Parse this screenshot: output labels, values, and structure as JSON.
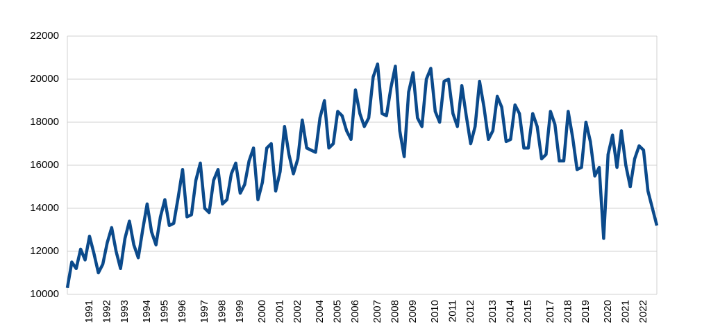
{
  "chart_data": {
    "type": "line",
    "categories": [
      null,
      null,
      null,
      null,
      null,
      "1991",
      null,
      null,
      null,
      "1992",
      null,
      null,
      null,
      "1993",
      null,
      null,
      null,
      null,
      "1994",
      null,
      null,
      null,
      "1995",
      null,
      null,
      null,
      "1996",
      null,
      null,
      null,
      null,
      "1997",
      null,
      null,
      null,
      "1998",
      null,
      null,
      null,
      "1999",
      null,
      null,
      null,
      null,
      "2000",
      null,
      null,
      null,
      "2001",
      null,
      null,
      null,
      "2002",
      null,
      null,
      null,
      null,
      "2004",
      null,
      null,
      null,
      "2005",
      null,
      null,
      null,
      "2006",
      null,
      null,
      null,
      null,
      "2007",
      null,
      null,
      null,
      "2008",
      null,
      null,
      null,
      "2009",
      null,
      null,
      null,
      null,
      "2010",
      null,
      null,
      null,
      "2011",
      null,
      null,
      null,
      "2012",
      null,
      null,
      null,
      null,
      "2013",
      null,
      null,
      null,
      "2014",
      null,
      null,
      null,
      "2015",
      null,
      null,
      null,
      null,
      "2017",
      null,
      null,
      null,
      "2018",
      null,
      null,
      null,
      "2019",
      null,
      null,
      null,
      null,
      "2020",
      null,
      null,
      null,
      "2021",
      null,
      null,
      null,
      "2022",
      null,
      null,
      null
    ],
    "series": [
      {
        "color": "#0b4a8b",
        "values": [
          10300,
          11500,
          11200,
          12100,
          11600,
          12700,
          11900,
          11000,
          11400,
          12400,
          13100,
          12000,
          11200,
          12600,
          13400,
          12300,
          11700,
          13000,
          14200,
          12900,
          12300,
          13600,
          14400,
          13200,
          13300,
          14500,
          15800,
          13600,
          13700,
          15300,
          16100,
          14000,
          13800,
          15300,
          15800,
          14200,
          14400,
          15600,
          16100,
          14700,
          15100,
          16200,
          16800,
          14400,
          15200,
          16800,
          17000,
          14800,
          15700,
          17800,
          16500,
          15600,
          16300,
          18100,
          16800,
          16700,
          16600,
          18200,
          19000,
          16800,
          17000,
          18500,
          18300,
          17600,
          17200,
          19500,
          18400,
          17800,
          18200,
          20100,
          20700,
          18400,
          18300,
          19600,
          20600,
          17600,
          16400,
          19400,
          20300,
          18200,
          17800,
          20000,
          20500,
          18500,
          18000,
          19900,
          20000,
          18400,
          17800,
          19700,
          18300,
          17000,
          17800,
          19900,
          18700,
          17200,
          17600,
          19200,
          18700,
          17100,
          17200,
          18800,
          18400,
          16800,
          16800,
          18400,
          17800,
          16300,
          16500,
          18500,
          17900,
          16200,
          16200,
          18500,
          17300,
          15800,
          15900,
          18000,
          17100,
          15500,
          15900,
          12600,
          16500,
          17400,
          15900,
          17600,
          16000,
          15000,
          16300,
          16900,
          16700,
          14800,
          14000,
          13200
        ]
      }
    ],
    "ylim": [
      10000,
      22000
    ],
    "yticks": [
      10000,
      12000,
      14000,
      16000,
      18000,
      20000,
      22000
    ],
    "grid": true
  }
}
